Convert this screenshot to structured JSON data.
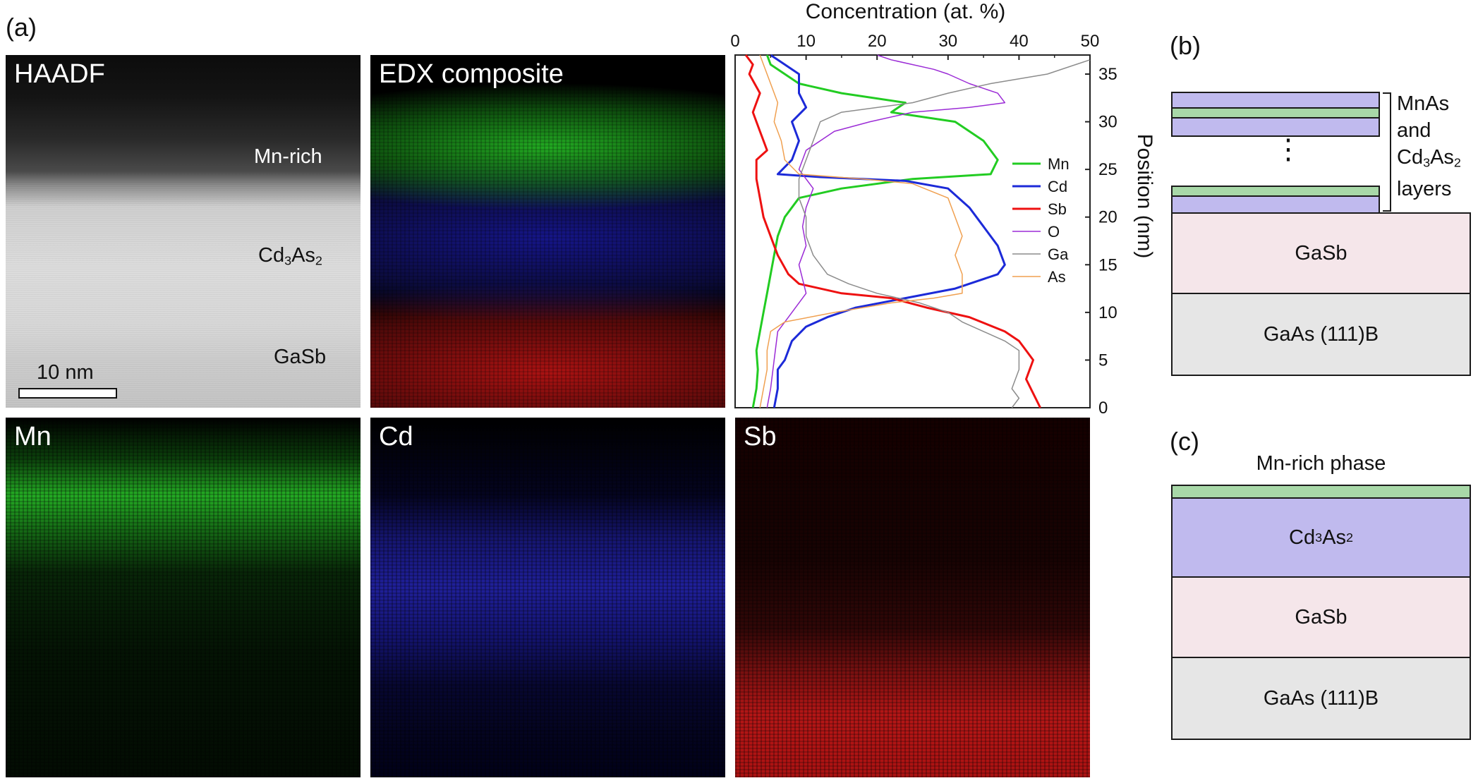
{
  "panel_labels": {
    "a": "(a)",
    "b": "(b)",
    "c": "(c)"
  },
  "panels": {
    "haadf": {
      "title": "HAADF",
      "labels": {
        "mn_rich": "Mn-rich",
        "cd3as2": "Cd3As2",
        "gasb": "GaSb"
      },
      "scale_bar": "10 nm"
    },
    "edx": {
      "title": "EDX composite"
    },
    "mn_map": {
      "title": "Mn",
      "color": "#1fd21f"
    },
    "cd_map": {
      "title": "Cd",
      "color": "#2a2ae0"
    },
    "sb_map": {
      "title": "Sb",
      "color": "#e01818"
    }
  },
  "chart_data": {
    "type": "line",
    "title": "",
    "xlabel": "Concentration (at. %)",
    "ylabel": "Position (nm)",
    "xlim": [
      0,
      50
    ],
    "ylim": [
      0,
      37
    ],
    "x_ticks": [
      "0",
      "10",
      "20",
      "30",
      "40",
      "50"
    ],
    "y_ticks": [
      "0",
      "5",
      "10",
      "15",
      "20",
      "25",
      "30",
      "35"
    ],
    "legend_position": "right-middle",
    "series": [
      {
        "name": "Mn",
        "color": "#22cc22",
        "width": 3,
        "points": [
          [
            2.5,
            0
          ],
          [
            3,
            2
          ],
          [
            3.2,
            4
          ],
          [
            3,
            6
          ],
          [
            3.5,
            8
          ],
          [
            4,
            10
          ],
          [
            4.5,
            12
          ],
          [
            5,
            14
          ],
          [
            5.5,
            16
          ],
          [
            6,
            18
          ],
          [
            7,
            20
          ],
          [
            9,
            22
          ],
          [
            15,
            23
          ],
          [
            25,
            24
          ],
          [
            36,
            24.5
          ],
          [
            37,
            26
          ],
          [
            35,
            28
          ],
          [
            31,
            30
          ],
          [
            22,
            31
          ],
          [
            24,
            32
          ],
          [
            15,
            33
          ],
          [
            9,
            34
          ],
          [
            5,
            36
          ],
          [
            4.5,
            37
          ]
        ]
      },
      {
        "name": "Cd",
        "color": "#1c2ad8",
        "width": 3,
        "points": [
          [
            5.5,
            0
          ],
          [
            6,
            2
          ],
          [
            6,
            4
          ],
          [
            7,
            5
          ],
          [
            8,
            7
          ],
          [
            10,
            8.5
          ],
          [
            13,
            9.5
          ],
          [
            17,
            10.5
          ],
          [
            24,
            11.5
          ],
          [
            31,
            12.5
          ],
          [
            37,
            14
          ],
          [
            38,
            15
          ],
          [
            37,
            17
          ],
          [
            35,
            19
          ],
          [
            33,
            21
          ],
          [
            30,
            23
          ],
          [
            24,
            23.8
          ],
          [
            12,
            24.2
          ],
          [
            6,
            24.5
          ],
          [
            8,
            26
          ],
          [
            9,
            28
          ],
          [
            8,
            30
          ],
          [
            10,
            31.5
          ],
          [
            9,
            33
          ],
          [
            9,
            35
          ],
          [
            6,
            36.5
          ],
          [
            5,
            37
          ]
        ]
      },
      {
        "name": "Sb",
        "color": "#ee1111",
        "width": 3,
        "points": [
          [
            43,
            0
          ],
          [
            42,
            1.5
          ],
          [
            41,
            3
          ],
          [
            42,
            5
          ],
          [
            41,
            6
          ],
          [
            40,
            7
          ],
          [
            38,
            8
          ],
          [
            33,
            9.5
          ],
          [
            27,
            10.5
          ],
          [
            22,
            11.5
          ],
          [
            15,
            12
          ],
          [
            9,
            13
          ],
          [
            7.5,
            14
          ],
          [
            6,
            16
          ],
          [
            5,
            18
          ],
          [
            4,
            20
          ],
          [
            3.5,
            22
          ],
          [
            3,
            24
          ],
          [
            3,
            26
          ],
          [
            4.5,
            27
          ],
          [
            3.5,
            29
          ],
          [
            2.5,
            31
          ],
          [
            3.5,
            33
          ],
          [
            2,
            35
          ],
          [
            2.5,
            36
          ],
          [
            1.5,
            37
          ]
        ]
      },
      {
        "name": "O",
        "color": "#9b2bd6",
        "width": 1.5,
        "points": [
          [
            4.5,
            0
          ],
          [
            5,
            2
          ],
          [
            5.5,
            5
          ],
          [
            6,
            8
          ],
          [
            8,
            10
          ],
          [
            10,
            12
          ],
          [
            9,
            15
          ],
          [
            10,
            17
          ],
          [
            9.5,
            19
          ],
          [
            10,
            21
          ],
          [
            11,
            23
          ],
          [
            9,
            25
          ],
          [
            10,
            27
          ],
          [
            14,
            29
          ],
          [
            19,
            30
          ],
          [
            25,
            31
          ],
          [
            33,
            31.5
          ],
          [
            38,
            32
          ],
          [
            37,
            33
          ],
          [
            33,
            34
          ],
          [
            30,
            35
          ],
          [
            28,
            35.5
          ],
          [
            22,
            36.5
          ],
          [
            20,
            37
          ]
        ]
      },
      {
        "name": "Ga",
        "color": "#8c8c8c",
        "width": 1.5,
        "points": [
          [
            39,
            0
          ],
          [
            40,
            1
          ],
          [
            39,
            2
          ],
          [
            40,
            4
          ],
          [
            40,
            6
          ],
          [
            38,
            7
          ],
          [
            35,
            8
          ],
          [
            32,
            9
          ],
          [
            30,
            10
          ],
          [
            26,
            11
          ],
          [
            20,
            12
          ],
          [
            16,
            13
          ],
          [
            13,
            14
          ],
          [
            12,
            15
          ],
          [
            11,
            16
          ],
          [
            10,
            18
          ],
          [
            10,
            20
          ],
          [
            9,
            22
          ],
          [
            9,
            24
          ],
          [
            10,
            26
          ],
          [
            11,
            28
          ],
          [
            12,
            30
          ],
          [
            15,
            31
          ],
          [
            25,
            32
          ],
          [
            30,
            33
          ],
          [
            36,
            34
          ],
          [
            40,
            34.5
          ],
          [
            44,
            35
          ],
          [
            48,
            36
          ],
          [
            50,
            36.5
          ]
        ]
      },
      {
        "name": "As",
        "color": "#f0a050",
        "width": 1.5,
        "points": [
          [
            3.5,
            0
          ],
          [
            4,
            2
          ],
          [
            4.5,
            4
          ],
          [
            4.5,
            6
          ],
          [
            5,
            8
          ],
          [
            7,
            9
          ],
          [
            14,
            10
          ],
          [
            22,
            11
          ],
          [
            28,
            11.5
          ],
          [
            32,
            12
          ],
          [
            32,
            14
          ],
          [
            31,
            16
          ],
          [
            32,
            18
          ],
          [
            31,
            20
          ],
          [
            30,
            22
          ],
          [
            25,
            23.5
          ],
          [
            18,
            24
          ],
          [
            9,
            24.5
          ],
          [
            7,
            26
          ],
          [
            6.5,
            28
          ],
          [
            5.5,
            30
          ],
          [
            6,
            32
          ],
          [
            5,
            34
          ],
          [
            4,
            36
          ],
          [
            3.5,
            37
          ]
        ]
      }
    ]
  },
  "schematic_b": {
    "layers_label": {
      "line1": "MnAs",
      "line2": "and",
      "line3": "Cd3As2",
      "line4": "layers"
    },
    "gasb": "GaSb",
    "substrate": "GaAs (111)B",
    "colors": {
      "mnas": "#a8d8a8",
      "cd3as2": "#c0baee",
      "gasb": "#f5e6ea",
      "gaas": "#e6e6e6"
    }
  },
  "schematic_c": {
    "title": "Mn-rich phase",
    "cd3as2": "Cd3As2",
    "gasb": "GaSb",
    "substrate": "GaAs (111)B"
  }
}
